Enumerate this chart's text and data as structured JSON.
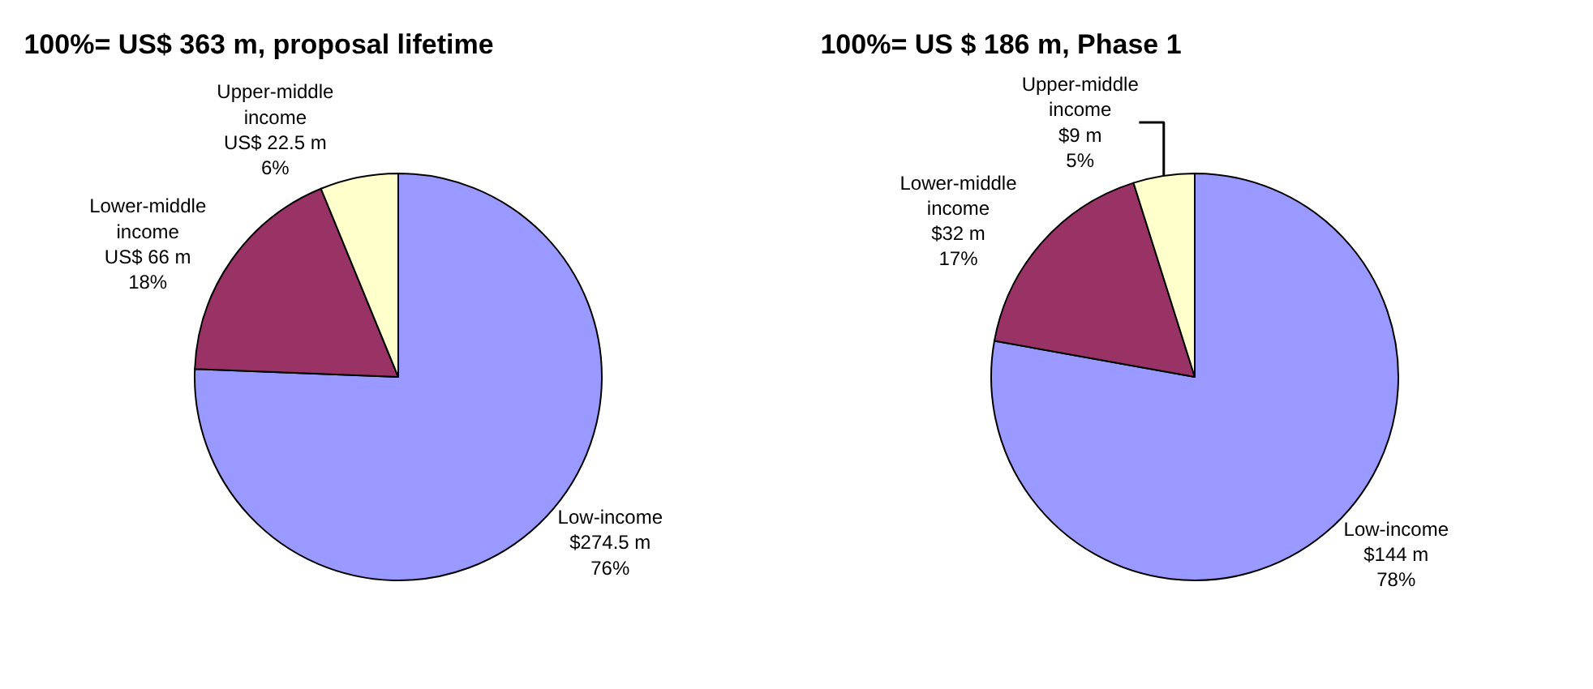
{
  "chart_data": [
    {
      "type": "pie",
      "title": "100%= US$ 363 m, proposal lifetime",
      "categories": [
        "Low-income",
        "Lower-middle income",
        "Upper-middle income"
      ],
      "values": [
        274.5,
        66,
        22.5
      ],
      "colors": [
        "#9999ff",
        "#993366",
        "#ffffcc"
      ],
      "value_labels": [
        "$274.5 m\n76%",
        "US$ 66 m\n18%",
        "US$ 22.5 m\n6%"
      ]
    },
    {
      "type": "pie",
      "title": "100%= US $ 186 m, Phase 1",
      "categories": [
        "Low-income",
        "Lower-middle income",
        "Upper-middle income"
      ],
      "values": [
        144,
        32,
        9
      ],
      "colors": [
        "#9999ff",
        "#993366",
        "#ffffcc"
      ],
      "value_labels": [
        "$144 m\n78%",
        "$32 m\n17%",
        "$9 m\n5%"
      ]
    }
  ]
}
